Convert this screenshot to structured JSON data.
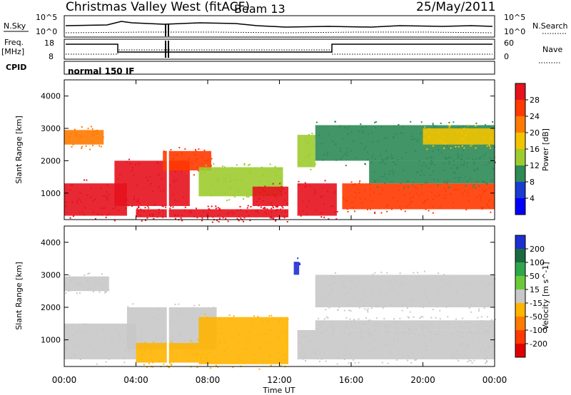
{
  "header": {
    "title": "Christmas Valley West (fitACF)",
    "beam": "Beam 13",
    "date": "25/May/2011"
  },
  "panels": {
    "nsky": {
      "label": "N.Sky",
      "tick_top": "10^5",
      "tick_bottom": "10^0",
      "right_label": "N.Search",
      "right_tick_top": "10^5",
      "right_tick_bottom": "10^0"
    },
    "freq": {
      "label_line1": "Freq.",
      "label_line2": "[MHz]",
      "tick_top": "18",
      "tick_bottom": "8",
      "right_label": "Nave",
      "right_tick_top": "60",
      "right_tick_bottom": "0"
    },
    "cpid": {
      "label": "CPID",
      "value": "normal 150 IF"
    }
  },
  "power_colorbar": {
    "label": "Power [dB]",
    "ticks": [
      "28",
      "24",
      "20",
      "16",
      "12",
      "8",
      "4"
    ],
    "colors": [
      "#e6121e",
      "#ff3a00",
      "#ff7a00",
      "#f2c300",
      "#9dcc2f",
      "#2e8a57",
      "#1a3cd0",
      "#0000ff"
    ]
  },
  "velocity_colorbar": {
    "label": "Velocity [m s^-1]",
    "ticks": [
      "200",
      "100",
      "50",
      "15",
      "-15",
      "-50",
      "-100",
      "-200"
    ],
    "colors": [
      "#1e2fd0",
      "#1a6a40",
      "#2ea64a",
      "#6acb3a",
      "#c8c8c8",
      "#ffb400",
      "#ff7a00",
      "#ff3a00",
      "#e00000"
    ]
  },
  "chart_data": [
    {
      "type": "heatmap",
      "title": "",
      "xlabel": "",
      "ylabel": "Slant Range [km]",
      "xlim": [
        0,
        24
      ],
      "ylim": [
        180,
        4500
      ],
      "x_ticks": [
        "00:00",
        "04:00",
        "08:00",
        "12:00",
        "16:00",
        "20:00",
        "00:00"
      ],
      "y_ticks": [
        1000,
        2000,
        3000,
        4000
      ],
      "colorbar": "Power [dB]",
      "regions": [
        {
          "x": [
            0.0,
            2.2
          ],
          "y": [
            2500,
            2950
          ],
          "value": 20
        },
        {
          "x": [
            0.0,
            3.5
          ],
          "y": [
            300,
            1300
          ],
          "value": 28
        },
        {
          "x": [
            2.8,
            7.0
          ],
          "y": [
            600,
            2000
          ],
          "value": 28
        },
        {
          "x": [
            5.5,
            8.2
          ],
          "y": [
            1700,
            2300
          ],
          "value": 24
        },
        {
          "x": [
            7.5,
            12.2
          ],
          "y": [
            900,
            1800
          ],
          "value": 12
        },
        {
          "x": [
            10.5,
            12.5
          ],
          "y": [
            600,
            1200
          ],
          "value": 28
        },
        {
          "x": [
            4.0,
            12.5
          ],
          "y": [
            250,
            500
          ],
          "value": 28
        },
        {
          "x": [
            13.0,
            15.2
          ],
          "y": [
            300,
            1300
          ],
          "value": 28
        },
        {
          "x": [
            13.0,
            14.0
          ],
          "y": [
            1800,
            2800
          ],
          "value": 12
        },
        {
          "x": [
            15.5,
            24.0
          ],
          "y": [
            500,
            1300
          ],
          "value": 24
        },
        {
          "x": [
            17.0,
            24.0
          ],
          "y": [
            1300,
            2000
          ],
          "value": 8
        },
        {
          "x": [
            14.0,
            24.0
          ],
          "y": [
            2000,
            3100
          ],
          "value": 8
        },
        {
          "x": [
            20.0,
            24.0
          ],
          "y": [
            2500,
            3000
          ],
          "value": 16
        }
      ]
    },
    {
      "type": "heatmap",
      "title": "",
      "xlabel": "Time UT",
      "ylabel": "Slant Range [km]",
      "xlim": [
        0,
        24
      ],
      "ylim": [
        180,
        4500
      ],
      "x_ticks": [
        "00:00",
        "04:00",
        "08:00",
        "12:00",
        "16:00",
        "20:00",
        "00:00"
      ],
      "y_ticks": [
        1000,
        2000,
        3000,
        4000
      ],
      "colorbar": "Velocity [m s^-1]",
      "regions": [
        {
          "x": [
            0.0,
            2.5
          ],
          "y": [
            2500,
            2950
          ],
          "value": 0
        },
        {
          "x": [
            0.0,
            4.0
          ],
          "y": [
            400,
            1500
          ],
          "value": 0
        },
        {
          "x": [
            3.5,
            8.5
          ],
          "y": [
            700,
            2000
          ],
          "value": 0
        },
        {
          "x": [
            7.5,
            12.5
          ],
          "y": [
            250,
            1700
          ],
          "value": -50
        },
        {
          "x": [
            4.0,
            7.5
          ],
          "y": [
            300,
            900
          ],
          "value": -50
        },
        {
          "x": [
            12.8,
            13.1
          ],
          "y": [
            3000,
            3400
          ],
          "value": 200
        },
        {
          "x": [
            13.0,
            24.0
          ],
          "y": [
            400,
            1300
          ],
          "value": 0
        },
        {
          "x": [
            14.0,
            24.0
          ],
          "y": [
            1300,
            1600
          ],
          "value": 0
        },
        {
          "x": [
            14.0,
            24.0
          ],
          "y": [
            2000,
            3000
          ],
          "value": 0
        }
      ]
    }
  ]
}
